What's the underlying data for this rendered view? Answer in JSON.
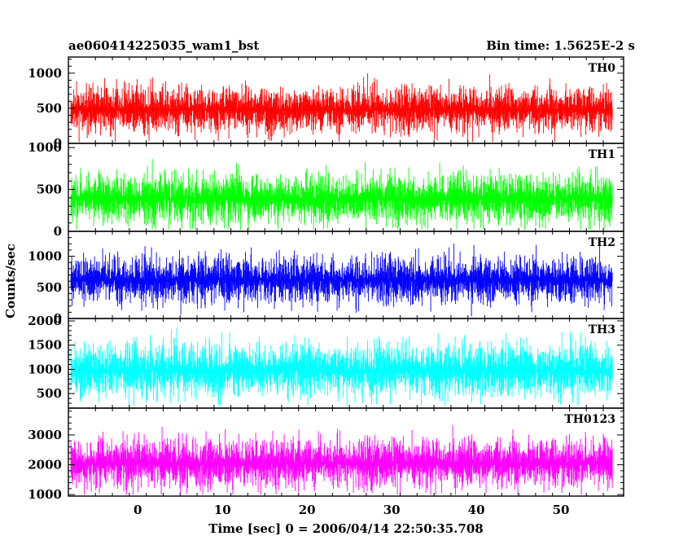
{
  "chart_data": {
    "type": "line",
    "title_left": "ae060414225035_wam1_bst",
    "title_right": "Bin time: 1.5625E-2 s",
    "xlabel": "Time [sec] 0 = 2006/04/14 22:50:35.708",
    "ylabel": "Counts/sec",
    "xlim": [
      -8.2,
      57.4
    ],
    "x_data_range": [
      -7.9,
      56.1
    ],
    "bin_time": 0.015625,
    "x_ticks": [
      0,
      10,
      20,
      30,
      40,
      50
    ],
    "panels": [
      {
        "name": "TH0",
        "color": "#ff0000",
        "ylim": [
          0,
          1230
        ],
        "ticks": [
          0,
          500,
          1000
        ],
        "mean": 480,
        "spread": 180,
        "min": 20,
        "max": 1230
      },
      {
        "name": "TH1",
        "color": "#00ff00",
        "ylim": [
          0,
          1050
        ],
        "ticks": [
          0,
          500,
          1000
        ],
        "mean": 390,
        "spread": 160,
        "min": 20,
        "max": 1050
      },
      {
        "name": "TH2",
        "color": "#0000ff",
        "ylim": [
          0,
          1400
        ],
        "ticks": [
          0,
          500,
          1000
        ],
        "mean": 620,
        "spread": 210,
        "min": 20,
        "max": 1400
      },
      {
        "name": "TH3",
        "color": "#00ffff",
        "ylim": [
          200,
          2050
        ],
        "ticks": [
          500,
          1000,
          1500,
          2000
        ],
        "mean": 980,
        "spread": 300,
        "min": 250,
        "max": 2050
      },
      {
        "name": "TH0123",
        "color": "#ff00ff",
        "ylim": [
          950,
          3900
        ],
        "ticks": [
          1000,
          2000,
          3000
        ],
        "mean": 2050,
        "spread": 460,
        "min": 1000,
        "max": 3900
      }
    ]
  }
}
